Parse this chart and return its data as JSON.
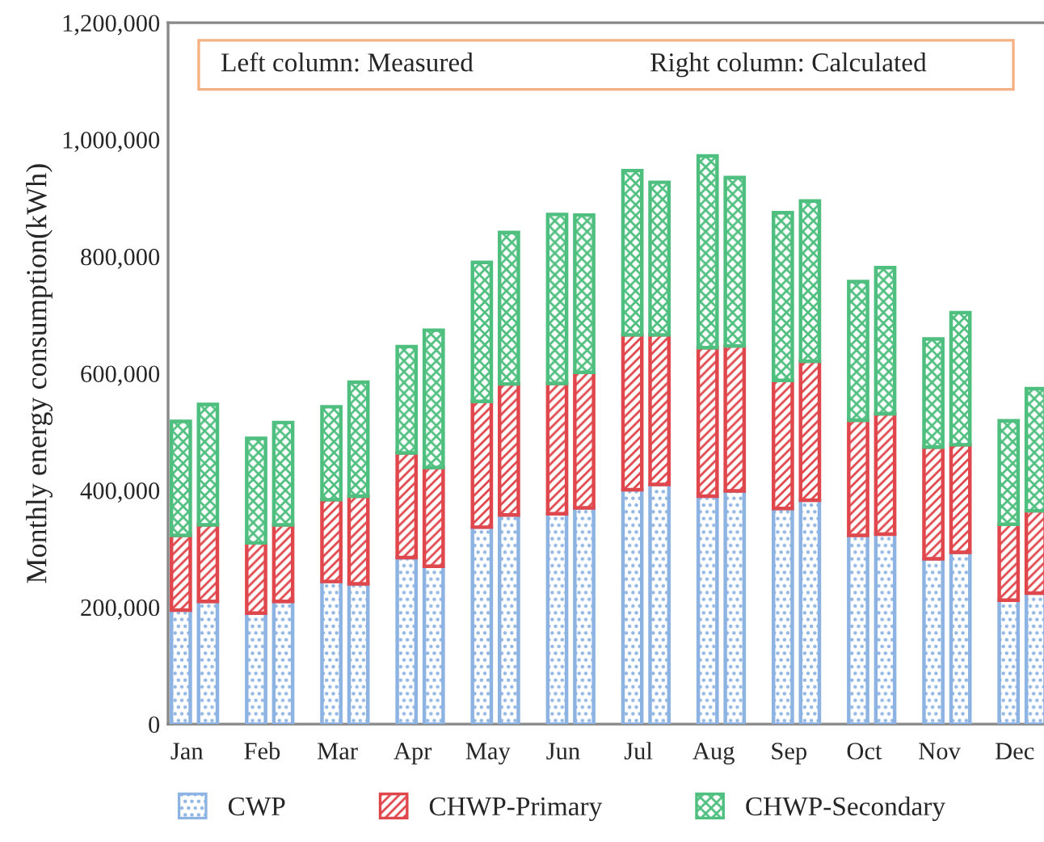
{
  "chart_data": {
    "type": "bar",
    "stacked": true,
    "ylabel": "Monthly energy consumption(kWh)",
    "categories": [
      "Jan",
      null,
      "Feb",
      null,
      "Mar",
      null,
      "Apr",
      null,
      "May",
      null,
      "Jun",
      null,
      "Jul",
      null,
      "Aug",
      null,
      "Sep",
      null,
      "Oct",
      null,
      "Nov",
      null,
      "Dec",
      null
    ],
    "series": [
      {
        "name": "CWP",
        "color": "#8db3e2",
        "values": [
          195000,
          210000,
          190000,
          210000,
          244000,
          240000,
          285000,
          270000,
          337000,
          358000,
          360000,
          370000,
          401000,
          410000,
          390000,
          399000,
          369000,
          383000,
          323000,
          325000,
          283000,
          294000,
          212000,
          224000
        ]
      },
      {
        "name": "CHWP-Primary",
        "color": "#e0474c",
        "values": [
          128000,
          131000,
          120000,
          131000,
          140000,
          150000,
          179000,
          169000,
          215000,
          224000,
          223000,
          232000,
          265000,
          256000,
          254000,
          248000,
          219000,
          238000,
          197000,
          206000,
          191000,
          184000,
          130000,
          141000
        ]
      },
      {
        "name": "CHWP-Secondary",
        "color": "#4fbf7f",
        "values": [
          195000,
          206000,
          179000,
          175000,
          159000,
          195000,
          182000,
          235000,
          238000,
          259000,
          289000,
          269000,
          281000,
          261000,
          328000,
          288000,
          287000,
          274000,
          237000,
          250000,
          185000,
          226000,
          177000,
          209000
        ]
      }
    ],
    "ylim": [
      0,
      1200000
    ],
    "yticks": [
      {
        "value": 0,
        "label": "0"
      },
      {
        "value": 200000,
        "label": "200,000"
      },
      {
        "value": 400000,
        "label": "400,000"
      },
      {
        "value": 600000,
        "label": "600,000"
      },
      {
        "value": 800000,
        "label": "800,000"
      },
      {
        "value": 1000000,
        "label": "1,000,000"
      },
      {
        "value": 1200000,
        "label": "1,200,000"
      }
    ],
    "annotations": [
      "Left column: Measured",
      "Right column: Calculated"
    ],
    "grid": false,
    "legend": "bottom"
  }
}
